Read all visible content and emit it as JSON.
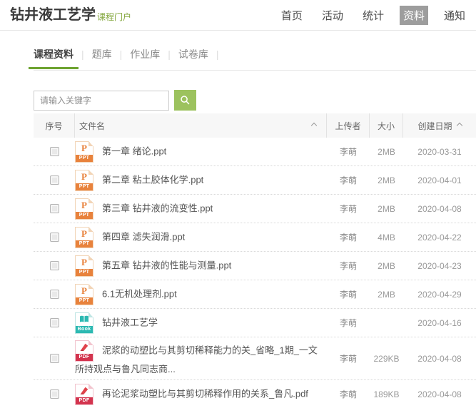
{
  "page": {
    "title": "钻井液工艺学",
    "subtitle": "课程门户"
  },
  "nav": {
    "items": [
      {
        "label": "首页",
        "active": false
      },
      {
        "label": "活动",
        "active": false
      },
      {
        "label": "统计",
        "active": false
      },
      {
        "label": "资料",
        "active": true
      },
      {
        "label": "通知",
        "active": false
      }
    ]
  },
  "tabs": {
    "separator": "|",
    "items": [
      {
        "label": "课程资料",
        "active": true
      },
      {
        "label": "题库",
        "active": false
      },
      {
        "label": "作业库",
        "active": false
      },
      {
        "label": "试卷库",
        "active": false
      }
    ]
  },
  "search": {
    "placeholder": "请输入关键字",
    "value": ""
  },
  "table": {
    "headers": {
      "index": "序号",
      "name": "文件名",
      "uploader": "上传者",
      "size": "大小",
      "created": "创建日期"
    },
    "rows": [
      {
        "icon": "ppt",
        "filename": "第一章 绪论.ppt",
        "uploader": "李萌",
        "size": "2MB",
        "created": "2020-03-31"
      },
      {
        "icon": "ppt",
        "filename": "第二章 粘土胶体化学.ppt",
        "uploader": "李萌",
        "size": "2MB",
        "created": "2020-04-01"
      },
      {
        "icon": "ppt",
        "filename": "第三章 钻井液的流变性.ppt",
        "uploader": "李萌",
        "size": "2MB",
        "created": "2020-04-08"
      },
      {
        "icon": "ppt",
        "filename": "第四章 滤失润滑.ppt",
        "uploader": "李萌",
        "size": "4MB",
        "created": "2020-04-22"
      },
      {
        "icon": "ppt",
        "filename": "第五章 钻井液的性能与测量.ppt",
        "uploader": "李萌",
        "size": "2MB",
        "created": "2020-04-23"
      },
      {
        "icon": "ppt",
        "filename": "6.1无机处理剂.ppt",
        "uploader": "李萌",
        "size": "2MB",
        "created": "2020-04-29"
      },
      {
        "icon": "book",
        "filename": "钻井液工艺学",
        "uploader": "李萌",
        "size": "",
        "created": "2020-04-16"
      },
      {
        "icon": "pdf",
        "filename": "泥浆的动塑比与其剪切稀释能力的关_省略_1期_一文所持观点与鲁凡同志商...",
        "uploader": "李萌",
        "size": "229KB",
        "created": "2020-04-08"
      },
      {
        "icon": "pdf",
        "filename": "再论泥浆动塑比与其剪切稀释作用的关系_鲁凡.pdf",
        "uploader": "李萌",
        "size": "189KB",
        "created": "2020-04-08"
      }
    ]
  },
  "icons": {
    "ppt": {
      "letter": "P",
      "banner": "PPT"
    },
    "book": {
      "banner": "Book"
    },
    "pdf": {
      "banner": "PDF"
    }
  },
  "colors": {
    "accent_green": "#6da32f",
    "subtitle_green": "#84a73e",
    "search_button_green": "#9cc25e",
    "nav_active_bg": "#9d9d9d",
    "ppt_orange": "#e8823c",
    "book_teal": "#2cb9b2",
    "pdf_red": "#d3344e"
  }
}
